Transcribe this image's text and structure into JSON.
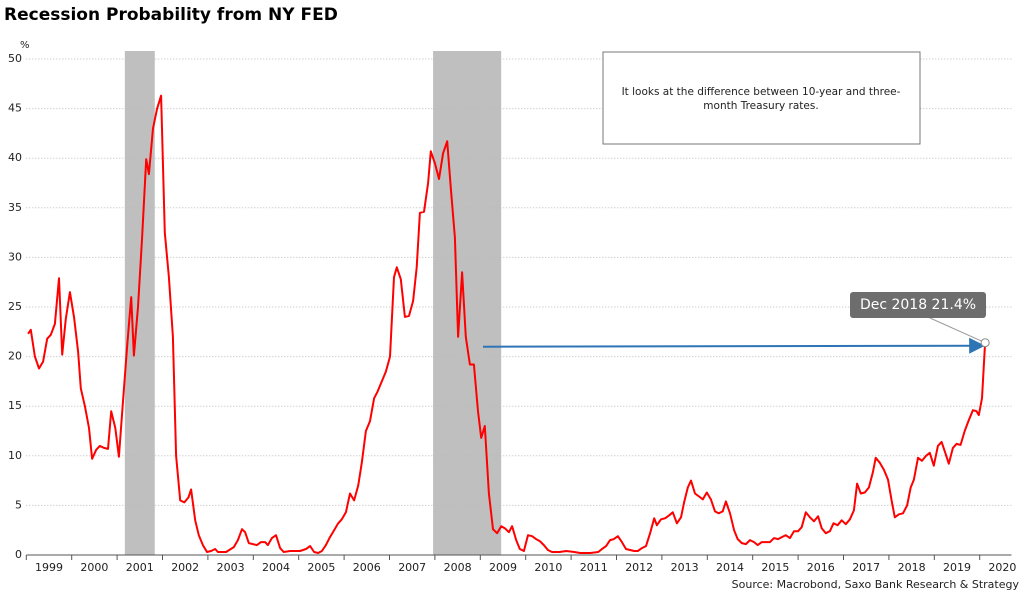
{
  "chart_data": {
    "type": "line",
    "title": "Recession Probability from NY FED",
    "y_unit": "%",
    "source": "Source: Macrobond, Saxo Bank Research & Strategy",
    "note_lines": [
      "It looks at the difference between 10-year and three-",
      "month Treasury rates."
    ],
    "callout": "Dec 2018 21.4%",
    "color": "#ff0000",
    "shade_color": "#bfbfbf",
    "shaded_regions": [
      [
        2001.17,
        2001.83
      ],
      [
        2007.96,
        2009.46
      ]
    ],
    "xlim": [
      1999,
      2020.7
    ],
    "xticks": [
      1999,
      2000,
      2001,
      2002,
      2003,
      2004,
      2005,
      2006,
      2007,
      2008,
      2009,
      2010,
      2011,
      2012,
      2013,
      2014,
      2015,
      2016,
      2017,
      2018,
      2019,
      2020
    ],
    "ylim": [
      0,
      50
    ],
    "yticks": [
      0,
      5,
      10,
      15,
      20,
      25,
      30,
      35,
      40,
      45,
      50
    ],
    "grid": true,
    "x": [
      1999.04,
      1999.1,
      1999.19,
      1999.28,
      1999.37,
      1999.46,
      1999.54,
      1999.63,
      1999.72,
      1999.79,
      1999.87,
      1999.96,
      2000.05,
      2000.14,
      2000.2,
      2000.29,
      2000.38,
      2000.45,
      2000.54,
      2000.62,
      2000.71,
      2000.8,
      2000.87,
      2000.96,
      2001.04,
      2001.13,
      2001.22,
      2001.31,
      2001.37,
      2001.46,
      2001.55,
      2001.64,
      2001.7,
      2001.79,
      2001.88,
      2001.97,
      2002.05,
      2002.14,
      2002.23,
      2002.3,
      2002.39,
      2002.48,
      2002.57,
      2002.63,
      2002.72,
      2002.8,
      2002.89,
      2002.98,
      2003.07,
      2003.16,
      2003.22,
      2003.4,
      2003.57,
      2003.66,
      2003.75,
      2003.82,
      2003.9,
      2004.08,
      2004.17,
      2004.26,
      2004.32,
      2004.41,
      2004.5,
      2004.59,
      2004.67,
      2004.81,
      2005.03,
      2005.16,
      2005.25,
      2005.34,
      2005.43,
      2005.51,
      2005.6,
      2005.69,
      2005.78,
      2005.87,
      2005.95,
      2006.04,
      2006.13,
      2006.22,
      2006.31,
      2006.39,
      2006.48,
      2006.57,
      2006.66,
      2006.74,
      2006.83,
      2006.92,
      2007.01,
      2007.1,
      2007.16,
      2007.25,
      2007.34,
      2007.43,
      2007.52,
      2007.6,
      2007.67,
      2007.76,
      2007.85,
      2007.91,
      2008.0,
      2008.09,
      2008.18,
      2008.27,
      2008.35,
      2008.44,
      2008.51,
      2008.6,
      2008.68,
      2008.77,
      2008.86,
      2008.95,
      2009.02,
      2009.1,
      2009.19,
      2009.28,
      2009.37,
      2009.46,
      2009.54,
      2009.63,
      2009.7,
      2009.79,
      2009.87,
      2009.96,
      2010.05,
      2010.14,
      2010.23,
      2010.31,
      2010.4,
      2010.49,
      2010.58,
      2010.75,
      2010.89,
      2011.07,
      2011.2,
      2011.42,
      2011.6,
      2011.68,
      2011.77,
      2011.86,
      2011.94,
      2012.03,
      2012.12,
      2012.21,
      2012.3,
      2012.39,
      2012.47,
      2012.56,
      2012.65,
      2012.74,
      2012.83,
      2012.89,
      2012.98,
      2013.07,
      2013.16,
      2013.24,
      2013.33,
      2013.42,
      2013.49,
      2013.57,
      2013.64,
      2013.73,
      2013.82,
      2013.9,
      2013.99,
      2014.08,
      2014.17,
      2014.25,
      2014.34,
      2014.41,
      2014.5,
      2014.59,
      2014.67,
      2014.76,
      2014.85,
      2014.94,
      2015.03,
      2015.11,
      2015.2,
      2015.38,
      2015.47,
      2015.56,
      2015.64,
      2015.73,
      2015.82,
      2015.91,
      2016.0,
      2016.08,
      2016.17,
      2016.26,
      2016.35,
      2016.44,
      2016.52,
      2016.61,
      2016.7,
      2016.78,
      2016.87,
      2016.96,
      2017.05,
      2017.14,
      2017.23,
      2017.3,
      2017.38,
      2017.47,
      2017.56,
      2017.65,
      2017.71,
      2017.8,
      2017.89,
      2017.98,
      2018.06,
      2018.13,
      2018.22,
      2018.31,
      2018.4,
      2018.48,
      2018.55,
      2018.64,
      2018.73,
      2018.82,
      2018.9,
      2018.99,
      2019.08,
      2019.16,
      2019.25,
      2019.32,
      2019.41,
      2019.49,
      2019.58,
      2019.67,
      2019.76,
      2019.85,
      2019.93,
      2019.98,
      2020.05,
      2020.12
    ],
    "values": [
      22.3,
      22.7,
      20,
      18.8,
      19.5,
      21.8,
      22.2,
      23.3,
      27.9,
      20.2,
      23.8,
      26.5,
      24,
      20.5,
      16.8,
      15,
      12.8,
      9.7,
      10.6,
      11,
      10.8,
      10.7,
      14.5,
      12.8,
      9.9,
      15.5,
      21,
      26,
      20.1,
      25,
      32,
      39.9,
      38.4,
      43,
      45,
      46.3,
      32.5,
      28,
      22,
      10,
      5.5,
      5.3,
      5.8,
      6.6,
      3.5,
      2,
      1,
      0.3,
      0.4,
      0.6,
      0.3,
      0.3,
      0.8,
      1.5,
      2.6,
      2.3,
      1.2,
      1,
      1.3,
      1.3,
      1,
      1.7,
      2,
      0.7,
      0.3,
      0.4,
      0.4,
      0.6,
      0.9,
      0.3,
      0.2,
      0.4,
      1,
      1.8,
      2.5,
      3.2,
      3.6,
      4.3,
      6.2,
      5.5,
      7,
      9.3,
      12.5,
      13.5,
      15.8,
      16.5,
      17.5,
      18.5,
      20,
      28,
      29,
      27.8,
      24,
      24.1,
      25.6,
      29,
      34.5,
      34.6,
      37.5,
      40.7,
      39.5,
      37.9,
      40.5,
      41.7,
      37,
      32,
      22,
      28.5,
      22,
      19.2,
      19.2,
      14.5,
      11.8,
      13,
      6.2,
      2.6,
      2.2,
      2.9,
      2.7,
      2.3,
      2.9,
      1.5,
      0.6,
      0.4,
      2,
      1.9,
      1.6,
      1.4,
      1,
      0.5,
      0.3,
      0.3,
      0.4,
      0.3,
      0.2,
      0.2,
      0.3,
      0.6,
      0.9,
      1.5,
      1.6,
      1.9,
      1.3,
      0.6,
      0.5,
      0.4,
      0.4,
      0.7,
      0.9,
      2.2,
      3.7,
      3,
      3.6,
      3.7,
      4,
      4.3,
      3.2,
      3.8,
      5.3,
      6.8,
      7.5,
      6.2,
      5.9,
      5.6,
      6.3,
      5.6,
      4.4,
      4.2,
      4.4,
      5.4,
      4.2,
      2.5,
      1.6,
      1.2,
      1.1,
      1.5,
      1.3,
      1,
      1.3,
      1.3,
      1.7,
      1.6,
      1.8,
      2,
      1.7,
      2.4,
      2.4,
      2.8,
      4.3,
      3.8,
      3.4,
      3.9,
      2.7,
      2.2,
      2.4,
      3.2,
      3,
      3.5,
      3.1,
      3.6,
      4.5,
      7.2,
      6.2,
      6.3,
      6.8,
      8.4,
      9.8,
      9.3,
      8.6,
      7.6,
      5.5,
      3.8,
      4.1,
      4.2,
      5,
      6.8,
      7.6,
      9.8,
      9.5,
      10,
      10.3,
      9,
      11,
      11.4,
      10.2,
      9.2,
      10.8,
      11.2,
      11.1,
      12.5,
      13.6,
      14.6,
      14.5,
      14.1,
      15.8,
      21.4
    ]
  }
}
